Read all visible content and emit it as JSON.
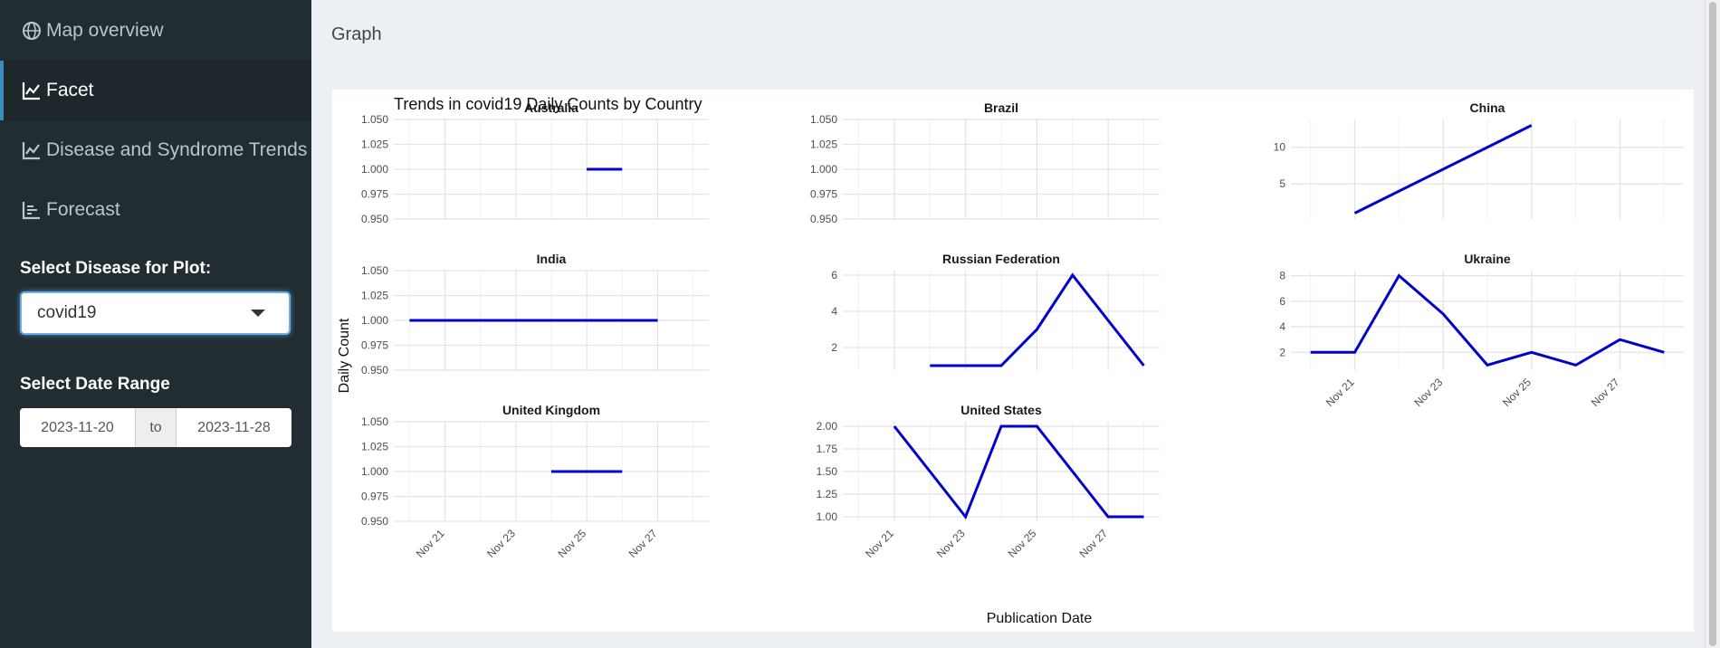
{
  "sidebar": {
    "items": [
      {
        "label": "Map overview",
        "icon": "globe-icon"
      },
      {
        "label": "Facet",
        "icon": "line-chart-icon"
      },
      {
        "label": "Disease and Syndrome Trends",
        "icon": "line-chart-icon"
      },
      {
        "label": "Forecast",
        "icon": "bar-chart-icon"
      }
    ],
    "active_index": 1,
    "disease_label": "Select Disease for Plot:",
    "disease_value": "covid19",
    "date_label": "Select Date Range",
    "date_start": "2023-11-20",
    "date_sep": "to",
    "date_end": "2023-11-28"
  },
  "content": {
    "title": "Graph"
  },
  "colors": {
    "line": "#0000cc",
    "sidebar_bg": "#222d32",
    "accent": "#3c8dbc"
  },
  "chart_data": {
    "type": "line",
    "title": "Trends in covid19 Daily Counts by Country",
    "xlabel": "Publication Date",
    "ylabel": "Daily Count",
    "x_tick_labels": [
      "Nov 21",
      "Nov 23",
      "Nov 25",
      "Nov 27"
    ],
    "panels": [
      {
        "name": "Australia",
        "y_ticks": [
          "1.050",
          "1.025",
          "1.000",
          "0.975",
          "0.950"
        ],
        "ylim": [
          0.95,
          1.05
        ],
        "x": [
          "Nov 25",
          "Nov 26"
        ],
        "y": [
          1,
          1
        ]
      },
      {
        "name": "Brazil",
        "y_ticks": [
          "1.050",
          "1.025",
          "1.000",
          "0.975",
          "0.950"
        ],
        "ylim": [
          0.95,
          1.05
        ],
        "x": [],
        "y": []
      },
      {
        "name": "China",
        "y_ticks": [
          "10",
          "5"
        ],
        "ylim": [
          0.2,
          13.8
        ],
        "x": [
          "Nov 21",
          "Nov 25"
        ],
        "y": [
          1,
          13
        ]
      },
      {
        "name": "India",
        "y_ticks": [
          "1.050",
          "1.025",
          "1.000",
          "0.975",
          "0.950"
        ],
        "ylim": [
          0.95,
          1.05
        ],
        "x": [
          "Nov 20",
          "Nov 27"
        ],
        "y": [
          1,
          1
        ]
      },
      {
        "name": "Russian Federation",
        "y_ticks": [
          "6",
          "4",
          "2"
        ],
        "ylim": [
          0.75,
          6.25
        ],
        "x": [
          "Nov 22",
          "Nov 23",
          "Nov 24",
          "Nov 25",
          "Nov 26",
          "Nov 27",
          "Nov 28"
        ],
        "y": [
          1,
          1,
          1,
          3,
          6,
          3.5,
          1
        ]
      },
      {
        "name": "Ukraine",
        "y_ticks": [
          "8",
          "6",
          "4",
          "2"
        ],
        "ylim": [
          0.6,
          8.4
        ],
        "x": [
          "Nov 20",
          "Nov 21",
          "Nov 22",
          "Nov 23",
          "Nov 24",
          "Nov 25",
          "Nov 26",
          "Nov 27",
          "Nov 28"
        ],
        "y": [
          2,
          2,
          8,
          5,
          1,
          2,
          1,
          3,
          2
        ]
      },
      {
        "name": "United Kingdom",
        "y_ticks": [
          "1.050",
          "1.025",
          "1.000",
          "0.975",
          "0.950"
        ],
        "ylim": [
          0.95,
          1.05
        ],
        "x": [
          "Nov 24",
          "Nov 26"
        ],
        "y": [
          1,
          1
        ]
      },
      {
        "name": "United States",
        "y_ticks": [
          "2.00",
          "1.75",
          "1.50",
          "1.25",
          "1.00"
        ],
        "ylim": [
          0.95,
          2.05
        ],
        "x": [
          "Nov 21",
          "Nov 22",
          "Nov 23",
          "Nov 24",
          "Nov 25",
          "Nov 26",
          "Nov 27",
          "Nov 28"
        ],
        "y": [
          2,
          1.5,
          1,
          2,
          2,
          1.5,
          1,
          1
        ]
      }
    ]
  }
}
